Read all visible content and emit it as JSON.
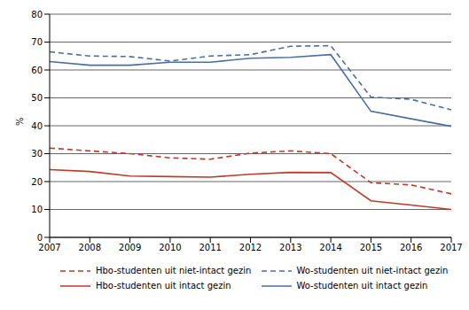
{
  "chart_data": {
    "type": "line",
    "y_label": "%",
    "categories": [
      "2007",
      "2008",
      "2009",
      "2010",
      "2011",
      "2012",
      "2013",
      "2014",
      "2015",
      "2016",
      "2017"
    ],
    "ylim": [
      0,
      80
    ],
    "yticks": [
      0,
      10,
      20,
      30,
      40,
      50,
      60,
      70,
      80
    ],
    "grid": true,
    "legend": "bottom",
    "series": [
      {
        "name": "Hbo-studenten uit niet-intact gezin",
        "color": "#c0392b",
        "line_style": "dashed",
        "values": [
          32,
          31,
          30,
          28.5,
          28,
          30.2,
          31,
          30,
          19.6,
          18.8,
          15.6
        ]
      },
      {
        "name": "Wo-studenten uit niet-intact gezin",
        "color": "#4a6fa5",
        "line_style": "dashed",
        "values": [
          66.5,
          65,
          64.8,
          63.2,
          65,
          65.5,
          68.5,
          68.7,
          50.3,
          49.5,
          45.7
        ]
      },
      {
        "name": "Hbo-studenten uit intact gezin",
        "color": "#c0392b",
        "line_style": "solid",
        "values": [
          24.3,
          23.6,
          22,
          21.8,
          21.6,
          22.6,
          23.3,
          23.2,
          13.1,
          11.6,
          10
        ]
      },
      {
        "name": "Wo-studenten uit intact gezin",
        "color": "#4a6fa5",
        "line_style": "solid",
        "values": [
          63,
          61.7,
          61.7,
          62.8,
          62.8,
          64.2,
          64.5,
          65.5,
          45.2,
          42.5,
          39.8
        ]
      }
    ]
  }
}
